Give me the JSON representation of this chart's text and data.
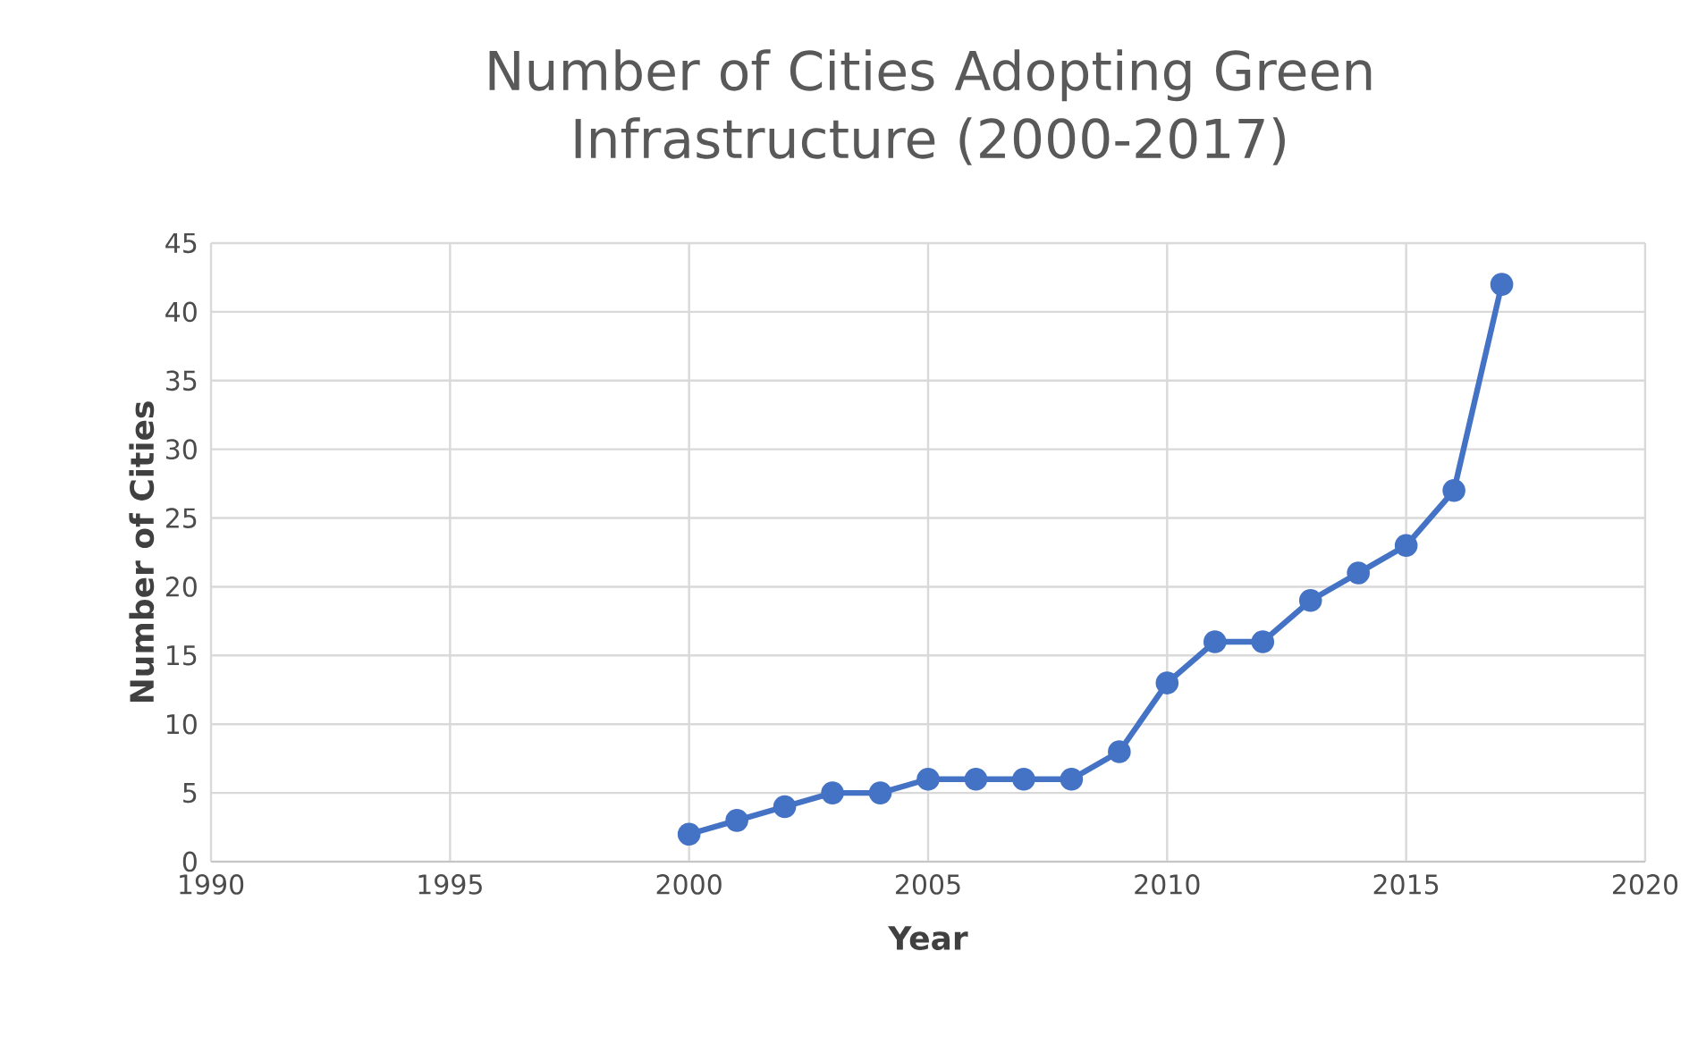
{
  "chart_data": {
    "type": "line",
    "title": "Number of Cities Adopting Green Infrastructure (2000-2017)",
    "xlabel": "Year",
    "ylabel": "Number of Cities",
    "x": [
      2000,
      2001,
      2002,
      2003,
      2004,
      2005,
      2006,
      2007,
      2008,
      2009,
      2010,
      2011,
      2012,
      2013,
      2014,
      2015,
      2016,
      2017
    ],
    "series": [
      {
        "color": "#4472c4",
        "values": [
          2,
          3,
          4,
          5,
          5,
          6,
          6,
          6,
          6,
          8,
          13,
          16,
          16,
          19,
          21,
          23,
          27,
          42
        ]
      }
    ],
    "xlim": [
      1990,
      2020
    ],
    "xticks": [
      1990,
      1995,
      2000,
      2005,
      2010,
      2015,
      2020
    ],
    "ylim": [
      0,
      45
    ],
    "yticks": [
      0,
      5,
      10,
      15,
      20,
      25,
      30,
      35,
      40,
      45
    ],
    "grid": true,
    "marker": "circle",
    "line_style": "solid"
  }
}
